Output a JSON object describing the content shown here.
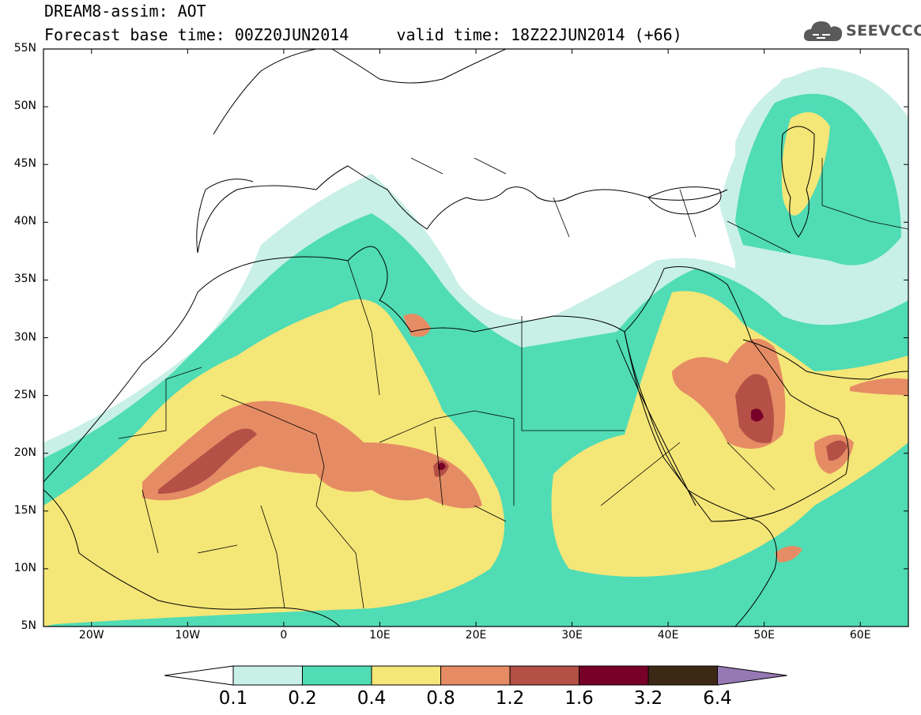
{
  "title": {
    "line1": "DREAM8-assim: AOT",
    "line2": "Forecast base time: 00Z20JUN2014     valid time: 18Z22JUN2014 (+66)"
  },
  "logo": {
    "text": "SEEVCCC",
    "icon": "cloud-icon"
  },
  "map": {
    "lon_range": [
      -25,
      65
    ],
    "lat_range": [
      5,
      55
    ],
    "lat_labels": [
      "55N",
      "50N",
      "45N",
      "40N",
      "35N",
      "30N",
      "25N",
      "20N",
      "15N",
      "10N",
      "5N"
    ],
    "lon_labels": [
      "20W",
      "10W",
      "0",
      "10E",
      "20E",
      "30E",
      "40E",
      "50E",
      "60E"
    ],
    "variable": "AOT"
  },
  "colorbar": {
    "labels": [
      "0.1",
      "0.2",
      "0.4",
      "0.8",
      "1.2",
      "1.6",
      "3.2",
      "6.4"
    ],
    "colors": [
      "#c8f0e6",
      "#50dcb4",
      "#f5e678",
      "#e68c64",
      "#b45046",
      "#780028",
      "#3c2814",
      "#9678b4"
    ]
  }
}
